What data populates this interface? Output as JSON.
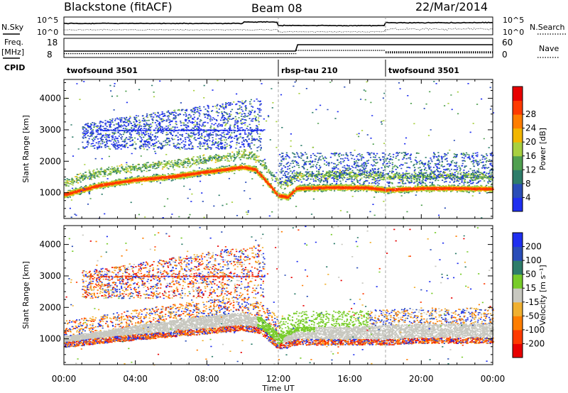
{
  "header": {
    "station": "Blackstone (fitACF)",
    "beam": "Beam 08",
    "date": "22/Mar/2014"
  },
  "noise_panel": {
    "left_label": "N.Sky",
    "right_label": "N.Search",
    "yticks": [
      "10^5",
      "10^0"
    ]
  },
  "freq_panel": {
    "left_label_top": "Freq.",
    "left_label_bottom": "[MHz]",
    "right_label": "Nave",
    "left_ticks": [
      "18",
      "8"
    ],
    "right_ticks": [
      "60",
      "0"
    ],
    "nave_levels": [
      {
        "x0": 0.0,
        "x1": 12.0,
        "nave": 12
      },
      {
        "x0": 12.0,
        "x1": 13.0,
        "nave": 12
      },
      {
        "x0": 13.0,
        "x1": 18.0,
        "nave": 22
      },
      {
        "x0": 18.0,
        "x1": 24.0,
        "nave": 16
      }
    ]
  },
  "cpid": {
    "label": "CPID",
    "segments": [
      {
        "name": "twofsound 3501",
        "start": 0
      },
      {
        "name": "rbsp-tau 210",
        "start": 12
      },
      {
        "name": "twofsound 3501",
        "start": 18
      }
    ]
  },
  "chart_data": [
    {
      "type": "heatmap",
      "name": "Power",
      "ylabel": "Slant Range [km]",
      "xlim": [
        0,
        24
      ],
      "ylim": [
        180,
        4600
      ],
      "yticks": [
        1000,
        2000,
        3000,
        4000
      ],
      "colorbar": {
        "label": "Power [dB]",
        "ticks": [
          "4",
          "8",
          "12",
          "16",
          "20",
          "24",
          "28"
        ],
        "colors": [
          "#1f2ff0",
          "#2a4db8",
          "#2e7d6a",
          "#50a050",
          "#a8d040",
          "#f2b600",
          "#ff7d00",
          "#ff3a00",
          "#e80000"
        ]
      },
      "main_band": {
        "x": [
          0,
          1,
          2,
          4,
          6,
          8,
          9,
          10,
          10.7,
          11.3,
          11.8,
          12.0,
          12.5,
          13,
          15,
          17,
          18,
          20,
          22,
          24
        ],
        "y": [
          950,
          1100,
          1250,
          1420,
          1520,
          1680,
          1750,
          1830,
          1750,
          1380,
          1030,
          920,
          870,
          1150,
          1180,
          1170,
          1100,
          1150,
          1150,
          1130
        ]
      },
      "features": [
        {
          "label": "upper scatter",
          "x0": 1.0,
          "x1": 11.0,
          "y0": 2400,
          "y1": 4300
        },
        {
          "label": "3000 km trace",
          "x0": 2.0,
          "x1": 11.2,
          "y": 3000
        },
        {
          "label": "late scatter",
          "x0": 12.0,
          "x1": 24.0,
          "y0": 1300,
          "y1": 2300
        }
      ]
    },
    {
      "type": "heatmap",
      "name": "Velocity",
      "ylabel": "Slant Range [km]",
      "xlabel": "Time UT",
      "xlim": [
        0,
        24
      ],
      "xticks": [
        "00:00",
        "04:00",
        "08:00",
        "12:00",
        "16:00",
        "20:00",
        "00:00"
      ],
      "ylim": [
        180,
        4600
      ],
      "yticks": [
        1000,
        2000,
        3000,
        4000
      ],
      "colorbar": {
        "label": "Velocity [m s⁻¹]",
        "ticks": [
          "200",
          "100",
          "50",
          "15",
          "-15",
          "-50",
          "-100",
          "-200"
        ],
        "colors": [
          "#1f2ff0",
          "#2a4db8",
          "#2e7d6a",
          "#78cc2a",
          "#c8c8c0",
          "#f0b030",
          "#ff7d00",
          "#ff3a00",
          "#e80000"
        ]
      },
      "gs_band": {
        "x": [
          0,
          2,
          4,
          6,
          8,
          10,
          11,
          11.8,
          12.0,
          13,
          16,
          18,
          20,
          24
        ],
        "y_low": [
          900,
          1050,
          1150,
          1250,
          1350,
          1450,
          1350,
          950,
          850,
          1000,
          1000,
          1000,
          1050,
          1050
        ],
        "y_high": [
          1100,
          1250,
          1450,
          1600,
          1750,
          1850,
          1700,
          1300,
          1150,
          1400,
          1400,
          1450,
          1500,
          1500
        ]
      }
    }
  ]
}
